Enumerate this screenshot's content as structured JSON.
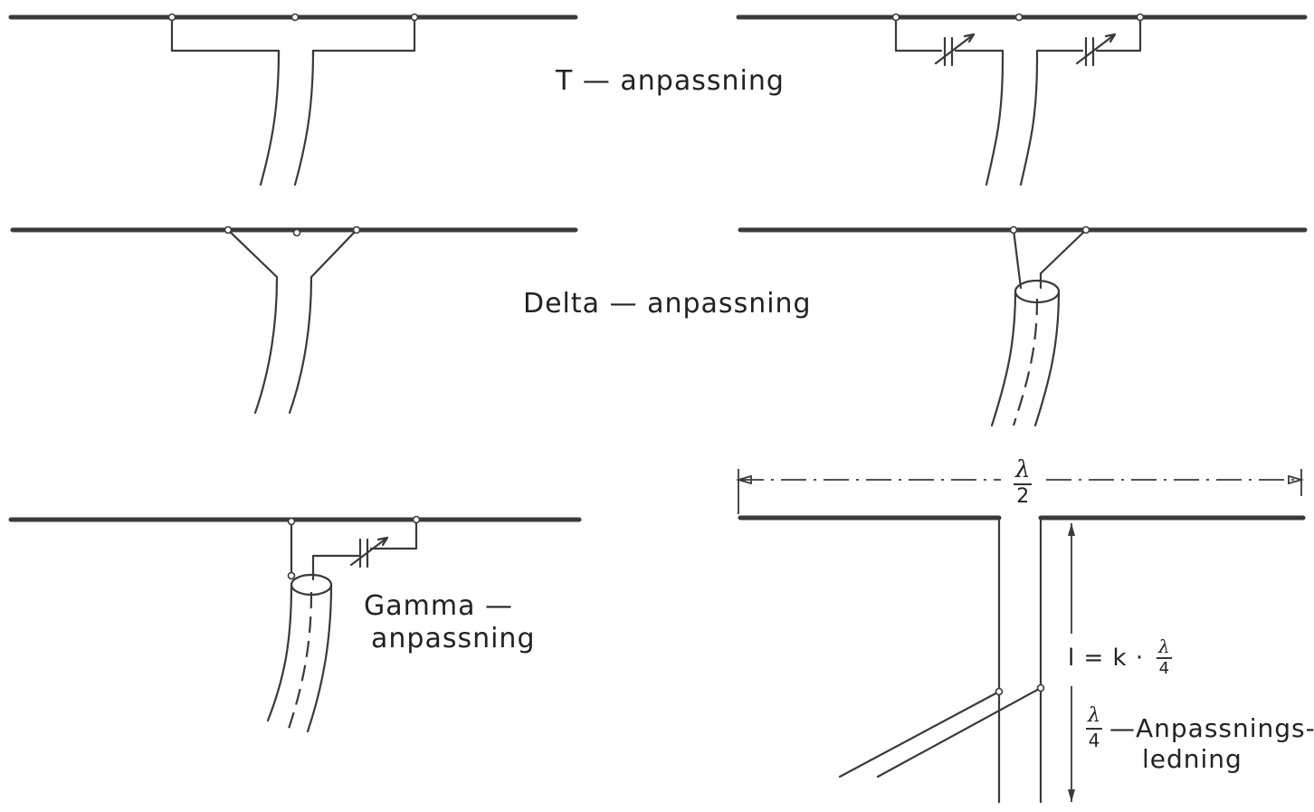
{
  "labels": {
    "t_match": "T — anpassning",
    "delta_match": "Delta — anpassning",
    "gamma_match_line1": "Gamma —",
    "gamma_match_line2": "anpassning",
    "half_wave_num": "λ",
    "half_wave_den": "2",
    "length_prefix": "l = k ·",
    "quarter_num": "λ",
    "quarter_den": "4",
    "stub_num": "λ",
    "stub_den": "4",
    "stub_line1": "—Anpassnings-",
    "stub_line2": "ledning"
  },
  "colors": {
    "ink": "#3a3a3a",
    "background": "#ffffff"
  }
}
